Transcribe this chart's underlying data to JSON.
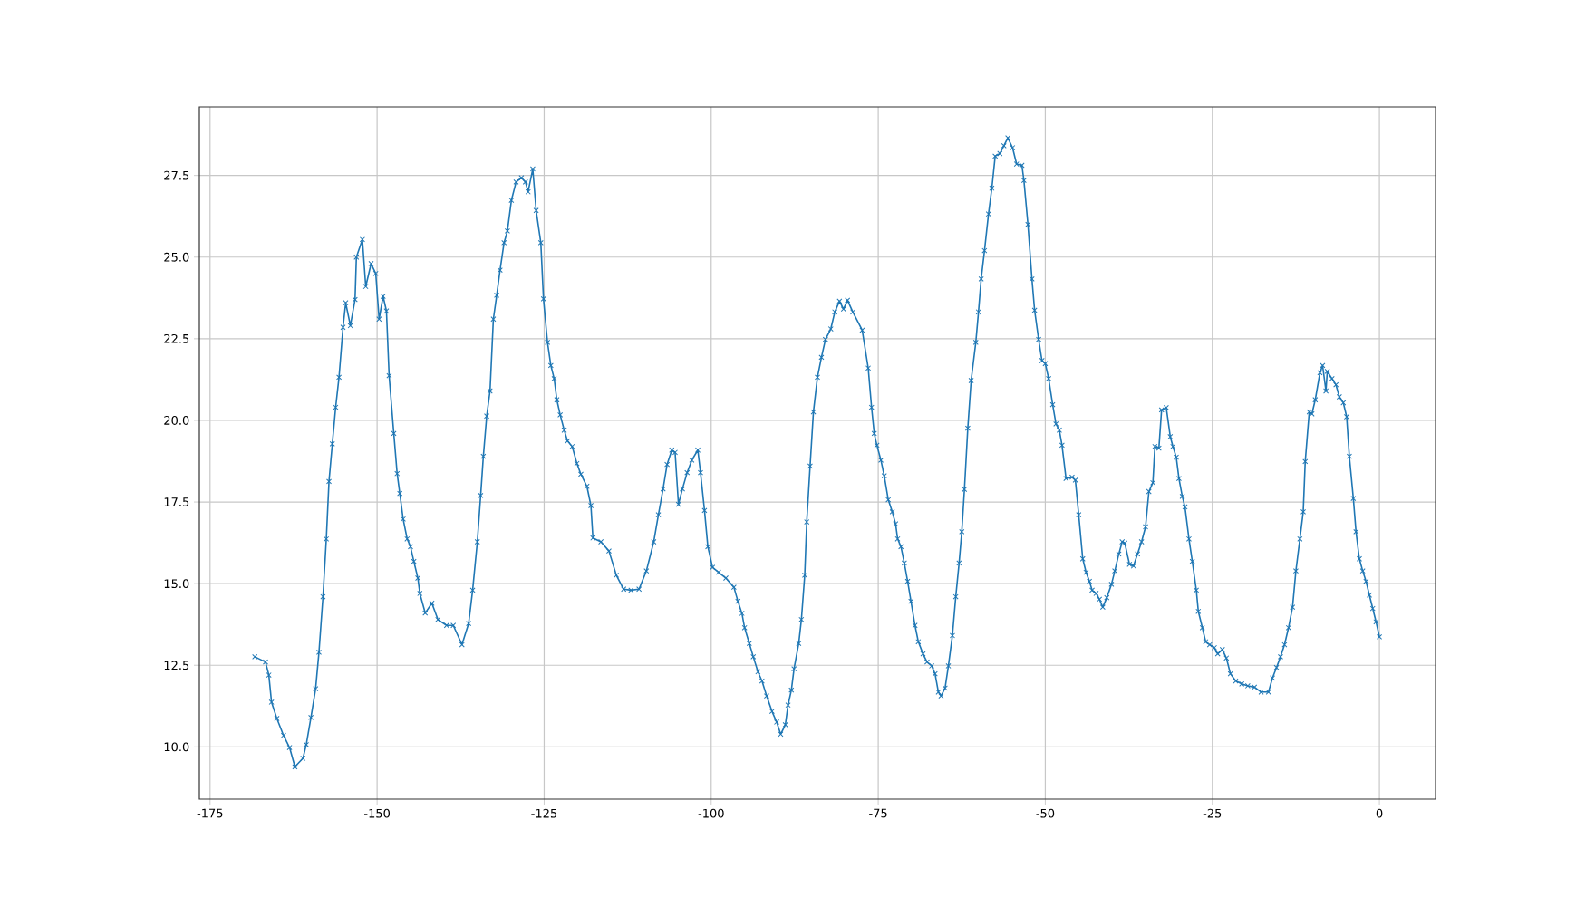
{
  "chart_data": {
    "type": "line",
    "color": "#1f77b4",
    "marker": "cross",
    "line_style": "solid",
    "grid": true,
    "x": [
      -168.3,
      -166.7,
      -166.2,
      -165.8,
      -165,
      -164,
      -163.1,
      -162.3,
      -161.1,
      -160.6,
      -159.9,
      -159.2,
      -158.7,
      -158.1,
      -157.6,
      -157.2,
      -156.7,
      -156.2,
      -155.7,
      -155.1,
      -154.7,
      -154,
      -153.3,
      -153.1,
      -152.2,
      -151.7,
      -150.9,
      -150.2,
      -149.7,
      -149.1,
      -148.6,
      -148.2,
      -147.5,
      -147,
      -146.6,
      -146.1,
      -145.5,
      -145,
      -144.5,
      -143.9,
      -143.6,
      -142.8,
      -141.8,
      -140.9,
      -139.6,
      -138.6,
      -137.3,
      -136.3,
      -135.7,
      -135,
      -134.5,
      -134.1,
      -133.6,
      -133.1,
      -132.6,
      -132.1,
      -131.6,
      -131,
      -130.5,
      -129.9,
      -129.2,
      -128.4,
      -127.8,
      -127.4,
      -126.7,
      -126.2,
      -125.5,
      -125.1,
      -124.5,
      -124,
      -123.5,
      -123.1,
      -122.6,
      -122,
      -121.5,
      -120.8,
      -120.1,
      -119.5,
      -118.6,
      -118,
      -117.7,
      -116.5,
      -115.3,
      -114.2,
      -113.1,
      -112,
      -110.8,
      -109.7,
      -108.6,
      -107.9,
      -107.2,
      -106.6,
      -105.9,
      -105.4,
      -104.9,
      -104.3,
      -103.6,
      -102.9,
      -102,
      -101.6,
      -101,
      -100.5,
      -99.8,
      -98.9,
      -97.8,
      -96.6,
      -96,
      -95.4,
      -95,
      -94.3,
      -93.7,
      -93,
      -92.4,
      -91.7,
      -90.9,
      -90.2,
      -89.6,
      -88.9,
      -88.5,
      -88,
      -87.6,
      -86.9,
      -86.5,
      -86,
      -85.7,
      -85.2,
      -84.7,
      -84.1,
      -83.5,
      -82.9,
      -82.1,
      -81.5,
      -80.8,
      -80.2,
      -79.6,
      -78.8,
      -77.4,
      -76.5,
      -76,
      -75.6,
      -75.2,
      -74.6,
      -74.1,
      -73.5,
      -72.9,
      -72.4,
      -72.1,
      -71.6,
      -71.1,
      -70.6,
      -70.1,
      -69.5,
      -69,
      -68.3,
      -67.7,
      -67,
      -66.5,
      -66,
      -65.6,
      -65,
      -64.5,
      -63.9,
      -63.4,
      -62.9,
      -62.5,
      -62.1,
      -61.6,
      -61.1,
      -60.4,
      -60,
      -59.6,
      -59.1,
      -58.5,
      -58,
      -57.5,
      -56.8,
      -56.2,
      -55.6,
      -54.9,
      -54.3,
      -53.5,
      -53.2,
      -52.6,
      -52,
      -51.6,
      -51,
      -50.5,
      -50,
      -49.5,
      -48.9,
      -48.4,
      -47.9,
      -47.5,
      -46.9,
      -46,
      -45.5,
      -45,
      -44.4,
      -43.9,
      -43.4,
      -43,
      -42.4,
      -41.9,
      -41.4,
      -40.8,
      -40.1,
      -39.6,
      -39,
      -38.5,
      -38.1,
      -37.4,
      -36.8,
      -36.2,
      -35.6,
      -35,
      -34.5,
      -33.9,
      -33.6,
      -33,
      -32.6,
      -31.9,
      -31.3,
      -30.9,
      -30.4,
      -30,
      -29.5,
      -29.1,
      -28.5,
      -28,
      -27.4,
      -27.1,
      -26.5,
      -26,
      -25.4,
      -24.7,
      -24.2,
      -23.5,
      -22.9,
      -22.3,
      -21.5,
      -20.6,
      -19.7,
      -18.7,
      -17.7,
      -16.6,
      -16,
      -15.4,
      -14.8,
      -14.2,
      -13.6,
      -13,
      -12.5,
      -11.9,
      -11.4,
      -11.1,
      -10.5,
      -10.1,
      -9.6,
      -8.9,
      -8.5,
      -8,
      -7.8,
      -7.1,
      -6.5,
      -6,
      -5.4,
      -4.9,
      -4.5,
      -3.9,
      -3.5,
      -3,
      -2.5,
      -2,
      -1.5,
      -1,
      -0.5,
      0
    ],
    "values": [
      12.76,
      12.6,
      12.2,
      11.37,
      10.87,
      10.35,
      9.98,
      9.39,
      9.65,
      10.07,
      10.9,
      11.78,
      12.9,
      14.6,
      16.37,
      18.13,
      19.28,
      20.4,
      21.32,
      22.85,
      23.6,
      22.9,
      23.7,
      25.0,
      25.54,
      24.1,
      24.8,
      24.5,
      23.1,
      23.8,
      23.35,
      21.37,
      19.6,
      18.37,
      17.76,
      16.98,
      16.37,
      16.13,
      15.68,
      15.17,
      14.7,
      14.1,
      14.4,
      13.9,
      13.72,
      13.72,
      13.13,
      13.78,
      14.8,
      16.28,
      17.7,
      18.9,
      20.13,
      20.9,
      23.1,
      23.83,
      24.6,
      25.44,
      25.8,
      26.74,
      27.3,
      27.43,
      27.3,
      27.0,
      27.7,
      26.43,
      25.44,
      23.72,
      22.39,
      21.68,
      21.28,
      20.63,
      20.17,
      19.7,
      19.37,
      19.2,
      18.68,
      18.35,
      17.98,
      17.39,
      16.4,
      16.28,
      16.0,
      15.26,
      14.83,
      14.8,
      14.83,
      15.39,
      16.28,
      17.11,
      17.9,
      18.65,
      19.09,
      19.02,
      17.43,
      17.9,
      18.4,
      18.78,
      19.09,
      18.4,
      17.24,
      16.13,
      15.5,
      15.35,
      15.17,
      14.89,
      14.46,
      14.09,
      13.65,
      13.17,
      12.76,
      12.3,
      12.02,
      11.56,
      11.09,
      10.76,
      10.39,
      10.68,
      11.28,
      11.74,
      12.39,
      13.17,
      13.9,
      15.26,
      16.89,
      18.6,
      20.26,
      21.32,
      21.93,
      22.48,
      22.8,
      23.32,
      23.65,
      23.41,
      23.68,
      23.32,
      22.76,
      21.6,
      20.4,
      19.6,
      19.24,
      18.78,
      18.3,
      17.57,
      17.2,
      16.83,
      16.37,
      16.13,
      15.63,
      15.07,
      14.46,
      13.72,
      13.22,
      12.85,
      12.6,
      12.48,
      12.24,
      11.68,
      11.56,
      11.8,
      12.48,
      13.41,
      14.6,
      15.63,
      16.59,
      17.89,
      19.76,
      21.22,
      22.39,
      23.32,
      24.33,
      25.2,
      26.32,
      27.11,
      28.09,
      28.17,
      28.41,
      28.65,
      28.35,
      27.85,
      27.81,
      27.35,
      26.0,
      24.33,
      23.37,
      22.48,
      21.83,
      21.74,
      21.28,
      20.48,
      19.89,
      19.7,
      19.24,
      18.22,
      18.26,
      18.17,
      17.11,
      15.76,
      15.35,
      15.07,
      14.8,
      14.7,
      14.52,
      14.28,
      14.57,
      14.98,
      15.39,
      15.91,
      16.28,
      16.24,
      15.59,
      15.54,
      15.91,
      16.28,
      16.74,
      17.82,
      18.09,
      19.2,
      19.15,
      20.32,
      20.39,
      19.5,
      19.2,
      18.87,
      18.22,
      17.67,
      17.35,
      16.37,
      15.68,
      14.8,
      14.15,
      13.65,
      13.22,
      13.13,
      13.04,
      12.85,
      12.98,
      12.72,
      12.24,
      12.02,
      11.93,
      11.87,
      11.83,
      11.68,
      11.68,
      12.11,
      12.43,
      12.76,
      13.13,
      13.65,
      14.28,
      15.39,
      16.37,
      17.2,
      18.74,
      20.26,
      20.2,
      20.63,
      21.46,
      21.68,
      20.9,
      21.5,
      21.28,
      21.09,
      20.72,
      20.54,
      20.11,
      18.9,
      17.61,
      16.59,
      15.76,
      15.39,
      15.07,
      14.65,
      14.24,
      13.83,
      13.37
    ],
    "xlim": [
      -176.6,
      8.4
    ],
    "ylim": [
      8.4,
      29.6
    ],
    "xticks": [
      -175,
      -150,
      -125,
      -100,
      -75,
      -50,
      -25,
      0
    ],
    "yticks": [
      {
        "value": 10,
        "label": "10.0"
      },
      {
        "value": 12.5,
        "label": "12.5"
      },
      {
        "value": 15,
        "label": "15.0"
      },
      {
        "value": 17.5,
        "label": "17.5"
      },
      {
        "value": 20,
        "label": "20.0"
      },
      {
        "value": 22.5,
        "label": "22.5"
      },
      {
        "value": 25,
        "label": "25.0"
      },
      {
        "value": 27.5,
        "label": "27.5"
      }
    ]
  }
}
